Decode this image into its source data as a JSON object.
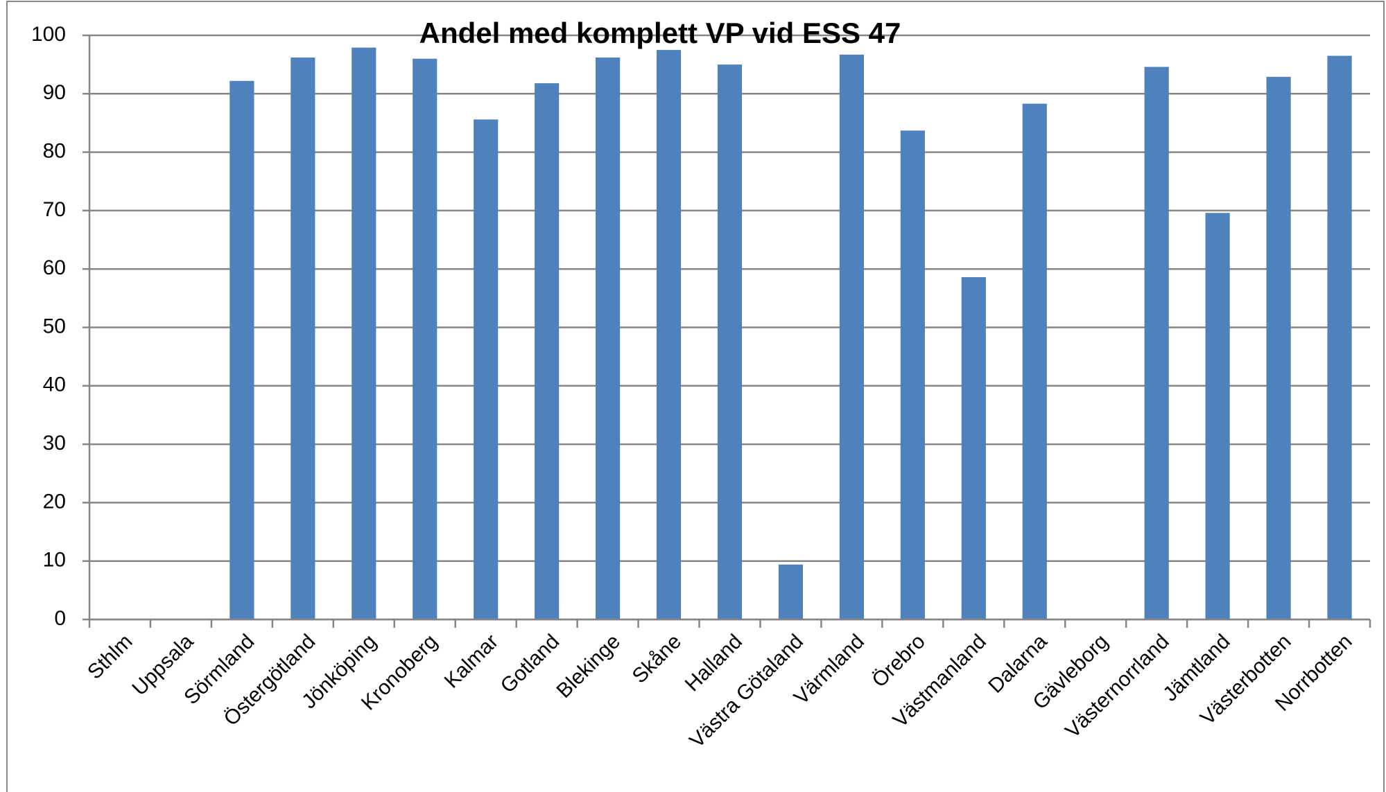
{
  "chart_data": {
    "type": "bar",
    "title": "Andel med komplett VP  vid ESS 47",
    "categories": [
      "Sthlm",
      "Uppsala",
      "Sörmland",
      "Östergötland",
      "Jönköping",
      "Kronoberg",
      "Kalmar",
      "Gotland",
      "Blekinge",
      "Skåne",
      "Halland",
      "Västra Götaland",
      "Värmland",
      "Örebro",
      "Västmanland",
      "Dalarna",
      "Gävleborg",
      "Västernorrland",
      "Jämtland",
      "Västerbotten",
      "Norrbotten"
    ],
    "values": [
      null,
      null,
      92.2,
      96.2,
      97.9,
      96.0,
      85.6,
      91.8,
      96.2,
      97.5,
      95.0,
      9.4,
      96.7,
      83.7,
      58.6,
      88.3,
      null,
      94.6,
      69.6,
      92.9,
      96.5
    ],
    "color": "#4f81bd",
    "ylim": [
      0,
      100
    ],
    "yticks": [
      0,
      10,
      20,
      30,
      40,
      50,
      60,
      70,
      80,
      90,
      100
    ],
    "grid": true
  }
}
